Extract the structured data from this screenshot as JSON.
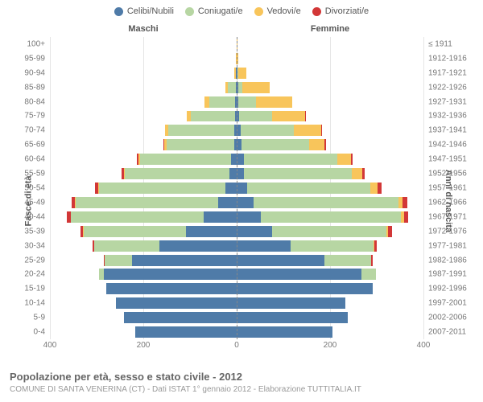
{
  "chart": {
    "type": "population-pyramid",
    "legend": [
      {
        "label": "Celibi/Nubili",
        "color": "#4f7ba8"
      },
      {
        "label": "Coniugati/e",
        "color": "#b7d6a3"
      },
      {
        "label": "Vedovi/e",
        "color": "#f8c55b"
      },
      {
        "label": "Divorziati/e",
        "color": "#d23737"
      }
    ],
    "side_labels": {
      "left": "Maschi",
      "right": "Femmine"
    },
    "axis_titles": {
      "left": "Fasce di età",
      "right": "Anni di nascita"
    },
    "x_axis": {
      "max": 400,
      "ticks": [
        400,
        200,
        0,
        200,
        400
      ]
    },
    "colors": {
      "celibi": "#4f7ba8",
      "coniugati": "#b7d6a3",
      "vedovi": "#f8c55b",
      "divorziati": "#d23737",
      "grid": "#e5e5e5",
      "text": "#777777",
      "center_line": "#888888",
      "background": "#ffffff"
    },
    "row_label_fontsize": 10,
    "legend_fontsize": 11,
    "rows": [
      {
        "age": "100+",
        "birth": "≤ 1911",
        "m": [
          0,
          0,
          0,
          0
        ],
        "f": [
          0,
          0,
          1,
          0
        ]
      },
      {
        "age": "95-99",
        "birth": "1912-1916",
        "m": [
          0,
          0,
          1,
          0
        ],
        "f": [
          0,
          0,
          4,
          0
        ]
      },
      {
        "age": "90-94",
        "birth": "1917-1921",
        "m": [
          1,
          1,
          3,
          0
        ],
        "f": [
          1,
          2,
          17,
          0
        ]
      },
      {
        "age": "85-89",
        "birth": "1922-1926",
        "m": [
          2,
          17,
          5,
          0
        ],
        "f": [
          4,
          8,
          58,
          0
        ]
      },
      {
        "age": "80-84",
        "birth": "1927-1931",
        "m": [
          3,
          56,
          10,
          0
        ],
        "f": [
          4,
          38,
          77,
          0
        ]
      },
      {
        "age": "75-79",
        "birth": "1932-1936",
        "m": [
          4,
          95,
          8,
          0
        ],
        "f": [
          6,
          70,
          70,
          2
        ]
      },
      {
        "age": "70-74",
        "birth": "1937-1941",
        "m": [
          6,
          140,
          7,
          0
        ],
        "f": [
          8,
          115,
          58,
          2
        ]
      },
      {
        "age": "65-69",
        "birth": "1942-1946",
        "m": [
          5,
          145,
          5,
          2
        ],
        "f": [
          10,
          146,
          32,
          3
        ]
      },
      {
        "age": "60-64",
        "birth": "1947-1951",
        "m": [
          12,
          195,
          3,
          3
        ],
        "f": [
          15,
          200,
          30,
          4
        ]
      },
      {
        "age": "55-59",
        "birth": "1952-1956",
        "m": [
          15,
          225,
          2,
          5
        ],
        "f": [
          15,
          232,
          22,
          6
        ]
      },
      {
        "age": "50-54",
        "birth": "1957-1961",
        "m": [
          25,
          270,
          2,
          6
        ],
        "f": [
          22,
          265,
          15,
          8
        ]
      },
      {
        "age": "45-49",
        "birth": "1962-1966",
        "m": [
          40,
          305,
          1,
          8
        ],
        "f": [
          36,
          310,
          10,
          10
        ]
      },
      {
        "age": "40-44",
        "birth": "1967-1971",
        "m": [
          70,
          285,
          1,
          8
        ],
        "f": [
          52,
          300,
          6,
          10
        ]
      },
      {
        "age": "35-39",
        "birth": "1972-1976",
        "m": [
          108,
          220,
          1,
          5
        ],
        "f": [
          75,
          245,
          4,
          8
        ]
      },
      {
        "age": "30-34",
        "birth": "1977-1981",
        "m": [
          165,
          140,
          0,
          3
        ],
        "f": [
          115,
          178,
          2,
          5
        ]
      },
      {
        "age": "25-29",
        "birth": "1982-1986",
        "m": [
          225,
          58,
          0,
          2
        ],
        "f": [
          188,
          100,
          0,
          3
        ]
      },
      {
        "age": "20-24",
        "birth": "1987-1991",
        "m": [
          285,
          10,
          0,
          0
        ],
        "f": [
          268,
          30,
          0,
          0
        ]
      },
      {
        "age": "15-19",
        "birth": "1992-1996",
        "m": [
          280,
          0,
          0,
          0
        ],
        "f": [
          292,
          0,
          0,
          0
        ]
      },
      {
        "age": "10-14",
        "birth": "1997-2001",
        "m": [
          258,
          0,
          0,
          0
        ],
        "f": [
          232,
          0,
          0,
          0
        ]
      },
      {
        "age": "5-9",
        "birth": "2002-2006",
        "m": [
          242,
          0,
          0,
          0
        ],
        "f": [
          238,
          0,
          0,
          0
        ]
      },
      {
        "age": "0-4",
        "birth": "2007-2011",
        "m": [
          218,
          0,
          0,
          0
        ],
        "f": [
          205,
          0,
          0,
          0
        ]
      }
    ],
    "footer": {
      "title": "Popolazione per età, sesso e stato civile - 2012",
      "subtitle": "COMUNE DI SANTA VENERINA (CT) - Dati ISTAT 1° gennaio 2012 - Elaborazione TUTTITALIA.IT"
    }
  }
}
